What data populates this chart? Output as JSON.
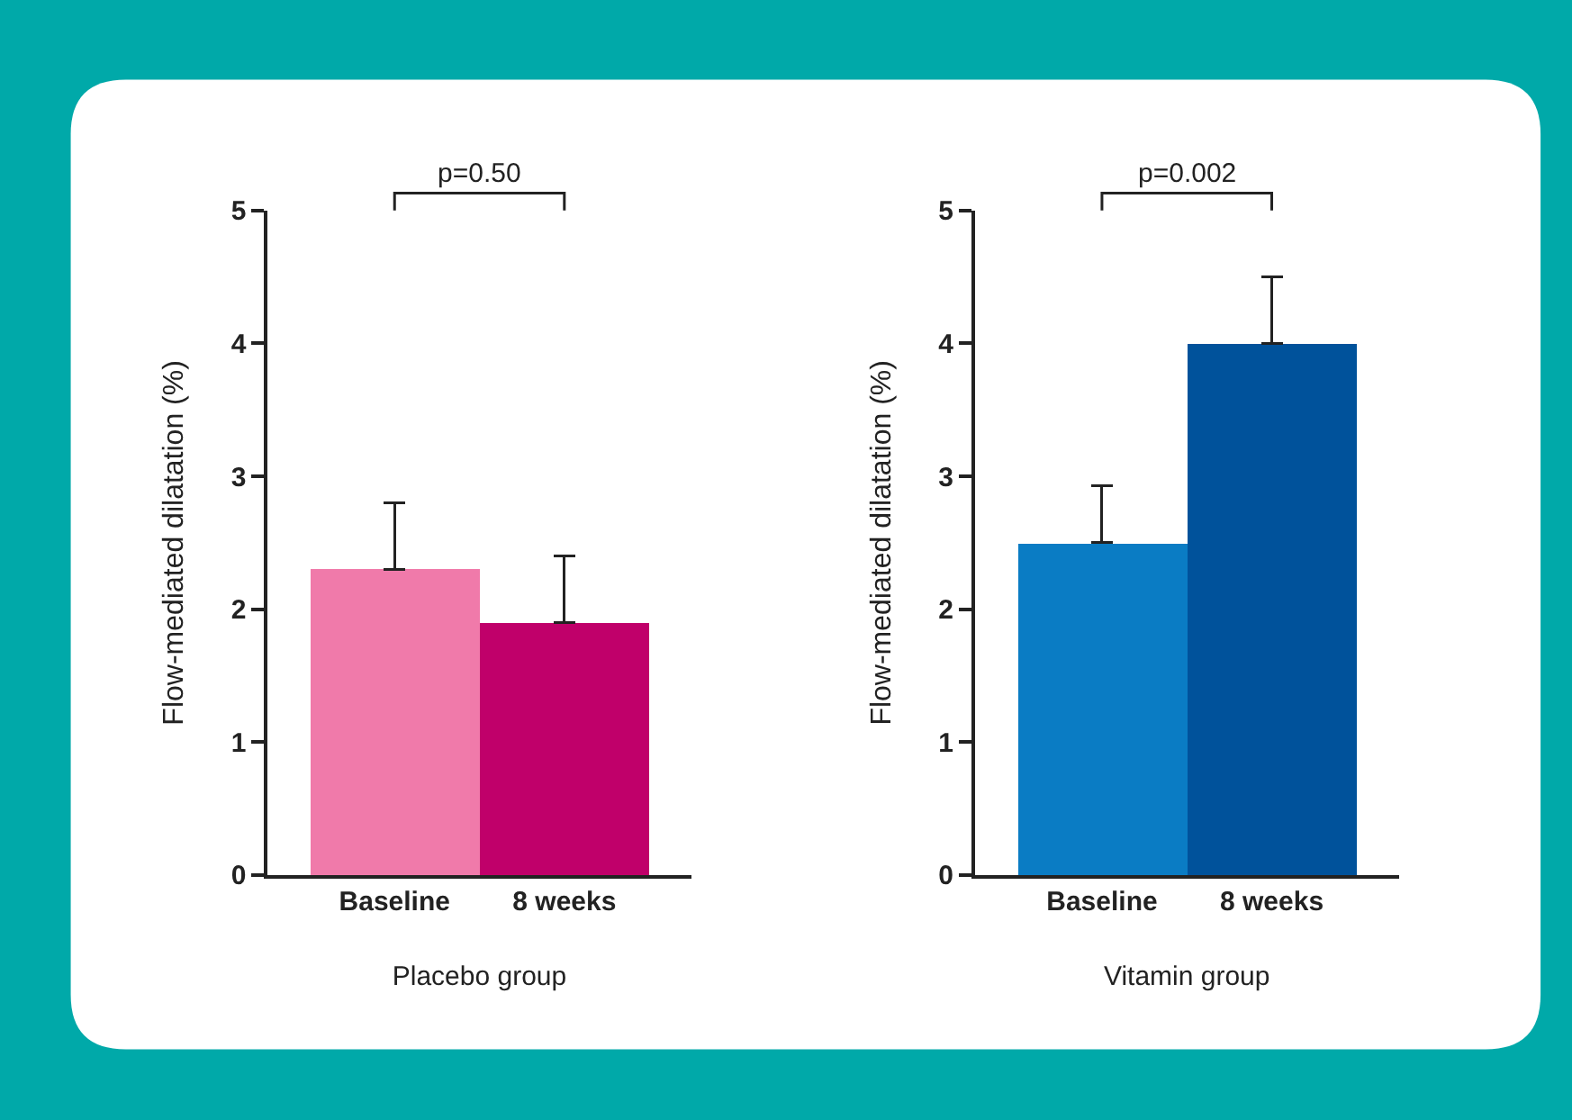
{
  "chart_data": [
    {
      "type": "bar",
      "xlabel": "Placebo group",
      "ylabel": "Flow-mediated dilatation (%)",
      "categories": [
        "Baseline",
        "8 weeks"
      ],
      "values": [
        2.3,
        1.9
      ],
      "colors": [
        "#f07aaa",
        "#c0006a"
      ],
      "errors": [
        [
          2.3,
          2.8
        ],
        [
          1.9,
          2.4
        ]
      ],
      "ylim": [
        0,
        5
      ],
      "yticks": [
        0,
        1,
        2,
        3,
        4,
        5
      ],
      "annotations": [
        "p=0.50"
      ]
    },
    {
      "type": "bar",
      "xlabel": "Vitamin group",
      "ylabel": "Flow-mediated dilatation (%)",
      "categories": [
        "Baseline",
        "8 weeks"
      ],
      "values": [
        2.5,
        4.0
      ],
      "colors": [
        "#0a7cc4",
        "#00529b"
      ],
      "errors": [
        [
          2.5,
          2.93
        ],
        [
          4.0,
          4.5
        ]
      ],
      "ylim": [
        0,
        5
      ],
      "yticks": [
        0,
        1,
        2,
        3,
        4,
        5
      ],
      "annotations": [
        "p=0.002"
      ]
    }
  ]
}
